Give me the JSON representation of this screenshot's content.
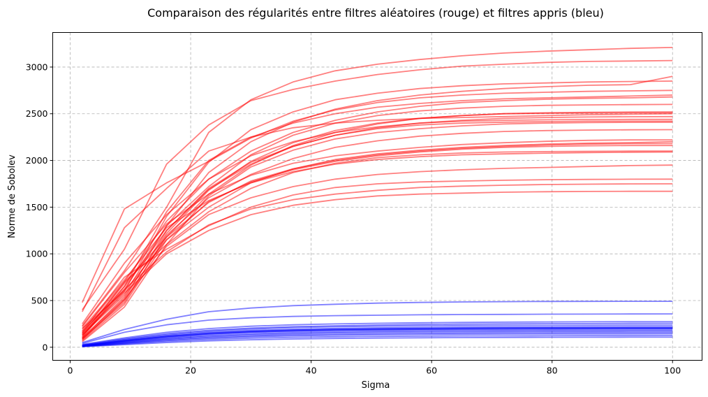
{
  "chart_data": {
    "type": "line",
    "title": "Comparaison des régularités entre filtres aléatoires (rouge) et filtres appris (bleu)",
    "xlabel": "Sigma",
    "ylabel": "Norme de Sobolev",
    "xlim": [
      -2.9,
      104.9
    ],
    "ylim": [
      -140,
      3370
    ],
    "x_ticks": [
      0,
      20,
      40,
      60,
      80,
      100
    ],
    "y_ticks": [
      0,
      500,
      1000,
      1500,
      2000,
      2500,
      3000
    ],
    "grid": true,
    "legend": "none",
    "colors": {
      "red": "#ff0000",
      "blue": "#0000ff"
    },
    "x": [
      2,
      9,
      16,
      23,
      30,
      37,
      44,
      51,
      58,
      65,
      72,
      79,
      86,
      93,
      100
    ],
    "series": [
      {
        "color": "red",
        "values": [
          380,
          1280,
          1700,
          2100,
          2250,
          2350,
          2400,
          2430,
          2450,
          2460,
          2470,
          2480,
          2490,
          2495,
          2500
        ]
      },
      {
        "color": "red",
        "values": [
          480,
          1480,
          1760,
          1990,
          2240,
          2420,
          2540,
          2620,
          2670,
          2700,
          2720,
          2730,
          2740,
          2745,
          2750
        ]
      },
      {
        "color": "red",
        "values": [
          400,
          1050,
          1960,
          2380,
          2640,
          2760,
          2850,
          2920,
          2970,
          3010,
          3030,
          3050,
          3060,
          3065,
          3070
        ]
      },
      {
        "color": "red",
        "values": [
          230,
          820,
          1500,
          2300,
          2650,
          2840,
          2960,
          3030,
          3080,
          3120,
          3150,
          3170,
          3185,
          3200,
          3210
        ]
      },
      {
        "color": "red",
        "values": [
          200,
          600,
          1400,
          1980,
          2330,
          2520,
          2650,
          2720,
          2770,
          2800,
          2820,
          2830,
          2840,
          2845,
          2850
        ]
      },
      {
        "color": "red",
        "values": [
          150,
          650,
          1450,
          2000,
          2250,
          2400,
          2500,
          2570,
          2610,
          2640,
          2660,
          2670,
          2680,
          2690,
          2700
        ]
      },
      {
        "color": "red",
        "values": [
          180,
          700,
          1350,
          1800,
          2100,
          2300,
          2430,
          2520,
          2580,
          2620,
          2640,
          2655,
          2665,
          2670,
          2680
        ]
      },
      {
        "color": "red",
        "values": [
          130,
          560,
          1300,
          1870,
          2200,
          2410,
          2550,
          2640,
          2700,
          2740,
          2770,
          2790,
          2805,
          2812,
          2900
        ]
      },
      {
        "color": "red",
        "values": [
          100,
          520,
          1250,
          1700,
          1980,
          2150,
          2270,
          2340,
          2380,
          2400,
          2410,
          2415,
          2420,
          2420,
          2420
        ]
      },
      {
        "color": "red",
        "values": [
          90,
          480,
          1200,
          1600,
          1850,
          2020,
          2140,
          2210,
          2260,
          2290,
          2310,
          2320,
          2325,
          2328,
          2330
        ]
      },
      {
        "color": "red",
        "values": [
          120,
          600,
          1150,
          1500,
          1760,
          1910,
          2010,
          2070,
          2110,
          2140,
          2160,
          2175,
          2185,
          2190,
          2200
        ]
      },
      {
        "color": "red",
        "values": [
          110,
          700,
          1100,
          1450,
          1700,
          1870,
          1970,
          2030,
          2060,
          2080,
          2090,
          2095,
          2098,
          2100,
          2100
        ]
      },
      {
        "color": "red",
        "values": [
          160,
          750,
          1050,
          1300,
          1500,
          1630,
          1710,
          1750,
          1770,
          1780,
          1788,
          1794,
          1797,
          1799,
          1800
        ]
      },
      {
        "color": "red",
        "values": [
          140,
          580,
          1000,
          1250,
          1420,
          1520,
          1580,
          1620,
          1640,
          1650,
          1660,
          1665,
          1668,
          1670,
          1670
        ]
      },
      {
        "color": "red",
        "values": [
          170,
          620,
          1020,
          1310,
          1480,
          1580,
          1640,
          1680,
          1710,
          1725,
          1735,
          1742,
          1746,
          1749,
          1750
        ]
      },
      {
        "color": "red",
        "values": [
          60,
          430,
          1100,
          1620,
          1930,
          2110,
          2230,
          2300,
          2340,
          2370,
          2390,
          2400,
          2405,
          2408,
          2410
        ]
      },
      {
        "color": "red",
        "values": [
          70,
          460,
          1150,
          1560,
          1770,
          1900,
          1990,
          2050,
          2090,
          2120,
          2140,
          2150,
          2157,
          2160,
          2160
        ]
      },
      {
        "color": "red",
        "values": [
          80,
          500,
          1180,
          1640,
          1950,
          2160,
          2300,
          2390,
          2450,
          2480,
          2500,
          2510,
          2515,
          2518,
          2520
        ]
      },
      {
        "color": "red",
        "values": [
          95,
          540,
          1220,
          1680,
          1990,
          2190,
          2320,
          2400,
          2450,
          2480,
          2500,
          2505,
          2508,
          2510,
          2510
        ]
      },
      {
        "color": "red",
        "values": [
          85,
          510,
          1080,
          1420,
          1600,
          1720,
          1800,
          1850,
          1880,
          1900,
          1915,
          1925,
          1935,
          1945,
          1950
        ]
      },
      {
        "color": "red",
        "values": [
          200,
          720,
          1280,
          1570,
          1760,
          1880,
          1960,
          2010,
          2040,
          2060,
          2070,
          2078,
          2084,
          2088,
          2090
        ]
      },
      {
        "color": "red",
        "values": [
          150,
          680,
          1180,
          1550,
          1780,
          1910,
          2000,
          2060,
          2100,
          2130,
          2150,
          2165,
          2175,
          2180,
          2180
        ]
      },
      {
        "color": "red",
        "values": [
          250,
          900,
          1420,
          1800,
          2050,
          2200,
          2300,
          2360,
          2400,
          2420,
          2430,
          2435,
          2438,
          2440,
          2440
        ]
      },
      {
        "color": "red",
        "values": [
          220,
          800,
          1320,
          1640,
          1840,
          1970,
          2050,
          2100,
          2140,
          2170,
          2190,
          2205,
          2215,
          2220,
          2220
        ]
      },
      {
        "color": "red",
        "values": [
          100,
          650,
          1250,
          1690,
          1960,
          2150,
          2270,
          2350,
          2400,
          2430,
          2450,
          2460,
          2465,
          2468,
          2470
        ]
      },
      {
        "color": "red",
        "values": [
          130,
          620,
          1300,
          1720,
          2060,
          2270,
          2400,
          2480,
          2530,
          2560,
          2580,
          2590,
          2595,
          2598,
          2600
        ]
      },
      {
        "color": "blue",
        "values": [
          50,
          190,
          300,
          380,
          420,
          445,
          460,
          472,
          480,
          485,
          488,
          490,
          491,
          492,
          492
        ]
      },
      {
        "color": "blue",
        "values": [
          40,
          160,
          240,
          290,
          315,
          330,
          338,
          343,
          347,
          350,
          352,
          354,
          355,
          356,
          357
        ]
      },
      {
        "color": "blue",
        "values": [
          30,
          100,
          160,
          200,
          225,
          240,
          250,
          257,
          262,
          266,
          269,
          271,
          272,
          273,
          273
        ]
      },
      {
        "color": "blue",
        "values": [
          25,
          90,
          145,
          182,
          205,
          220,
          230,
          238,
          244,
          248,
          251,
          253,
          254,
          255,
          256
        ]
      },
      {
        "color": "blue",
        "values": [
          20,
          75,
          125,
          160,
          180,
          193,
          202,
          208,
          212,
          215,
          217,
          218,
          219,
          220,
          220
        ]
      },
      {
        "color": "blue",
        "values": [
          15,
          65,
          110,
          142,
          162,
          175,
          183,
          188,
          192,
          195,
          197,
          198,
          199,
          200,
          200
        ]
      },
      {
        "color": "blue",
        "values": [
          12,
          55,
          95,
          125,
          144,
          156,
          164,
          170,
          174,
          177,
          179,
          180,
          181,
          182,
          182
        ]
      },
      {
        "color": "blue",
        "values": [
          10,
          45,
          80,
          105,
          122,
          133,
          140,
          145,
          149,
          152,
          154,
          155,
          156,
          157,
          157
        ]
      },
      {
        "color": "blue",
        "values": [
          8,
          35,
          62,
          83,
          97,
          106,
          112,
          116,
          119,
          121,
          122,
          123,
          124,
          124,
          125
        ]
      },
      {
        "color": "blue",
        "values": [
          6,
          28,
          50,
          68,
          80,
          88,
          94,
          98,
          101,
          103,
          105,
          106,
          107,
          108,
          108
        ]
      },
      {
        "color": "blue",
        "values": [
          14,
          60,
          105,
          138,
          158,
          170,
          178,
          183,
          187,
          190,
          192,
          193,
          194,
          195,
          195
        ]
      },
      {
        "color": "blue",
        "values": [
          18,
          70,
          118,
          152,
          172,
          185,
          193,
          198,
          202,
          205,
          207,
          208,
          209,
          210,
          210
        ]
      },
      {
        "color": "blue",
        "values": [
          22,
          82,
          135,
          172,
          195,
          210,
          219,
          225,
          229,
          232,
          234,
          235,
          236,
          237,
          237
        ]
      },
      {
        "color": "blue",
        "values": [
          9,
          40,
          72,
          96,
          112,
          122,
          129,
          134,
          137,
          139,
          141,
          142,
          143,
          143,
          144
        ]
      },
      {
        "color": "blue",
        "values": [
          11,
          50,
          88,
          116,
          134,
          146,
          154,
          159,
          163,
          166,
          168,
          169,
          170,
          171,
          171
        ]
      },
      {
        "color": "blue",
        "values": [
          16,
          68,
          115,
          148,
          168,
          181,
          189,
          195,
          199,
          202,
          204,
          205,
          206,
          207,
          207
        ]
      }
    ]
  }
}
